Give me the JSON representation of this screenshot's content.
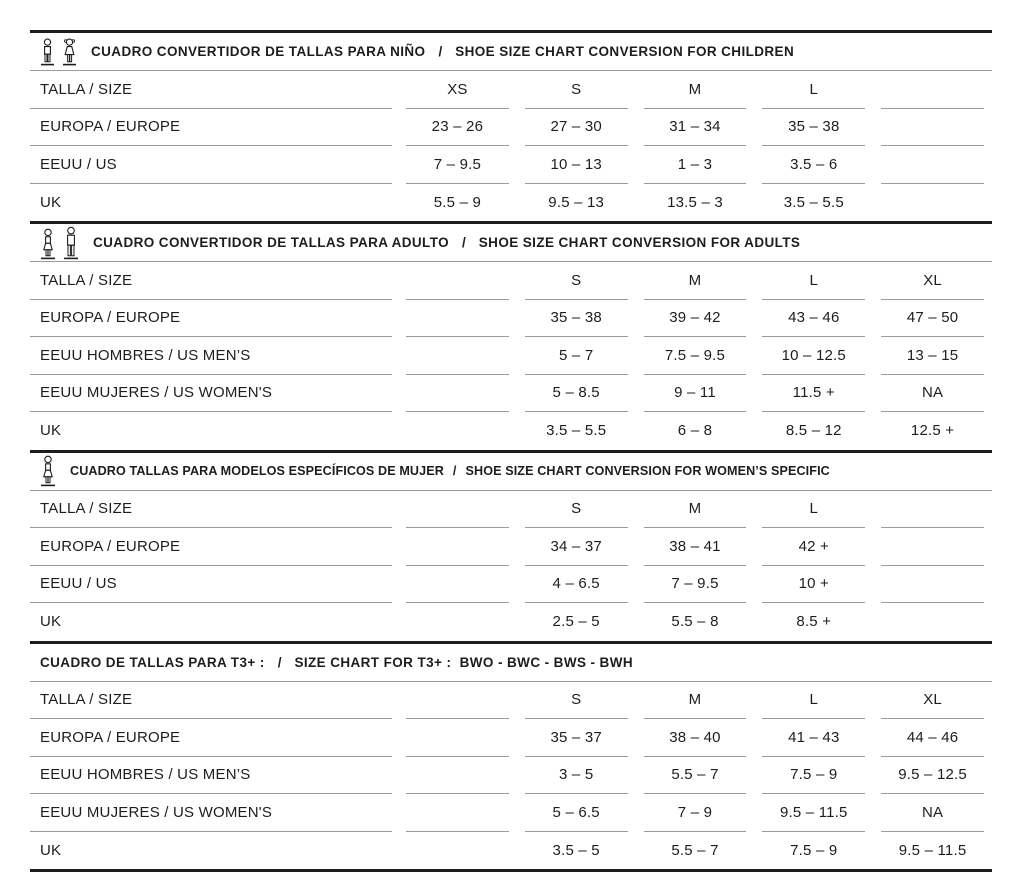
{
  "page": {
    "text_color": "#1d1d1b",
    "border_color": "#1d1d1b",
    "separator_color": "#9b9b9b",
    "background": "#ffffff"
  },
  "sections": [
    {
      "id": "children",
      "icons": [
        "boy-icon",
        "girl-icon"
      ],
      "title_es": "CUADRO CONVERTIDOR DE TALLAS PARA NIÑO",
      "divider": "/",
      "title_en": "SHOE SIZE CHART CONVERSION FOR CHILDREN",
      "rows": [
        {
          "label": "TALLA / SIZE",
          "values": [
            "XS",
            "S",
            "M",
            "L",
            ""
          ]
        },
        {
          "label": "EUROPA / EUROPE",
          "values": [
            "23 – 26",
            "27 – 30",
            "31 – 34",
            "35 – 38",
            ""
          ]
        },
        {
          "label": "EEUU / US",
          "values": [
            "7 – 9.5",
            "10 – 13",
            "1 – 3",
            "3.5 – 6",
            ""
          ]
        },
        {
          "label": "UK",
          "values": [
            "5.5 – 9",
            "9.5 – 13",
            "13.5 – 3",
            "3.5 – 5.5",
            ""
          ]
        }
      ]
    },
    {
      "id": "adults",
      "icons": [
        "woman-icon",
        "man-icon"
      ],
      "title_es": "CUADRO CONVERTIDOR DE TALLAS PARA ADULTO",
      "divider": "/",
      "title_en": "SHOE SIZE CHART CONVERSION FOR ADULTS",
      "rows": [
        {
          "label": "TALLA / SIZE",
          "values": [
            "",
            "S",
            "M",
            "L",
            "XL"
          ]
        },
        {
          "label": "EUROPA / EUROPE",
          "values": [
            "",
            "35 – 38",
            "39 – 42",
            "43 – 46",
            "47 – 50"
          ]
        },
        {
          "label": "EEUU HOMBRES / US MEN’S",
          "values": [
            "",
            "5 – 7",
            "7.5 – 9.5",
            "10 – 12.5",
            "13 – 15"
          ]
        },
        {
          "label": "EEUU MUJERES / US WOMEN'S",
          "values": [
            "",
            "5 – 8.5",
            "9 – 11",
            "11.5 +",
            "NA"
          ]
        },
        {
          "label": "UK",
          "values": [
            "",
            "3.5 – 5.5",
            "6 – 8",
            "8.5 – 12",
            "12.5 +"
          ]
        }
      ]
    },
    {
      "id": "women-specific",
      "icons": [
        "woman-icon"
      ],
      "title_es": "CUADRO TALLAS PARA MODELOS ESPECÍFICOS DE MUJER",
      "divider": "/",
      "title_en": "SHOE SIZE CHART CONVERSION FOR WOMEN’S SPECIFIC",
      "rows": [
        {
          "label": "TALLA / SIZE",
          "values": [
            "",
            "S",
            "M",
            "L",
            ""
          ]
        },
        {
          "label": "EUROPA / EUROPE",
          "values": [
            "",
            "34 – 37",
            "38 – 41",
            "42 +",
            ""
          ]
        },
        {
          "label": "EEUU / US",
          "values": [
            "",
            "4 – 6.5",
            "7 – 9.5",
            "10 +",
            ""
          ]
        },
        {
          "label": "UK",
          "values": [
            "",
            "2.5 – 5",
            "5.5 – 8",
            "8.5 +",
            ""
          ]
        }
      ]
    },
    {
      "id": "t3plus",
      "icons": [],
      "title_es": "CUADRO DE TALLAS PARA T3+ :",
      "divider": "/",
      "title_en": "SIZE CHART FOR T3+ :  BWO - BWC - BWS - BWH",
      "rows": [
        {
          "label": "TALLA / SIZE",
          "values": [
            "",
            "S",
            "M",
            "L",
            "XL"
          ]
        },
        {
          "label": "EUROPA / EUROPE",
          "values": [
            "",
            "35 – 37",
            "38 – 40",
            "41 – 43",
            "44 – 46"
          ]
        },
        {
          "label": "EEUU HOMBRES / US MEN’S",
          "values": [
            "",
            "3 – 5",
            "5.5 – 7",
            "7.5 – 9",
            "9.5 – 12.5"
          ]
        },
        {
          "label": "EEUU MUJERES / US WOMEN'S",
          "values": [
            "",
            "5 – 6.5",
            "7 – 9",
            "9.5 – 11.5",
            "NA"
          ]
        },
        {
          "label": "UK",
          "values": [
            "",
            "3.5 – 5",
            "5.5 – 7",
            "7.5 – 9",
            "9.5 – 11.5"
          ]
        }
      ]
    }
  ]
}
